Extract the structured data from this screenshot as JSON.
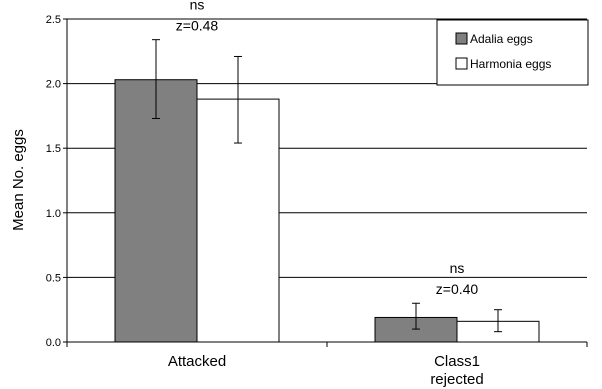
{
  "chart_data": {
    "type": "bar",
    "title": "",
    "xlabel": "",
    "ylabel": "Mean No. eggs",
    "ylim": [
      0,
      2.5
    ],
    "yticks": [
      "0.0",
      "0.5",
      "1.0",
      "1.5",
      "2.0",
      "2.5"
    ],
    "ytick_values": [
      0,
      0.5,
      1.0,
      1.5,
      2.0,
      2.5
    ],
    "grid": true,
    "legend_position": "top-right",
    "categories": [
      [
        "Attacked"
      ],
      [
        "Class1",
        "rejected"
      ]
    ],
    "series": [
      {
        "name": "Adalia eggs",
        "color": "#808080",
        "values": [
          2.03,
          0.19
        ],
        "error_low": [
          1.73,
          0.1
        ],
        "error_high": [
          2.34,
          0.3
        ]
      },
      {
        "name": "Harmonia eggs",
        "color": "#ffffff",
        "values": [
          1.88,
          0.16
        ],
        "error_low": [
          1.54,
          0.08
        ],
        "error_high": [
          2.21,
          0.25
        ]
      }
    ],
    "annotations": [
      {
        "category": 0,
        "lines": [
          "ns",
          "z=0.48"
        ]
      },
      {
        "category": 1,
        "lines": [
          "ns",
          "z=0.40"
        ]
      }
    ]
  }
}
